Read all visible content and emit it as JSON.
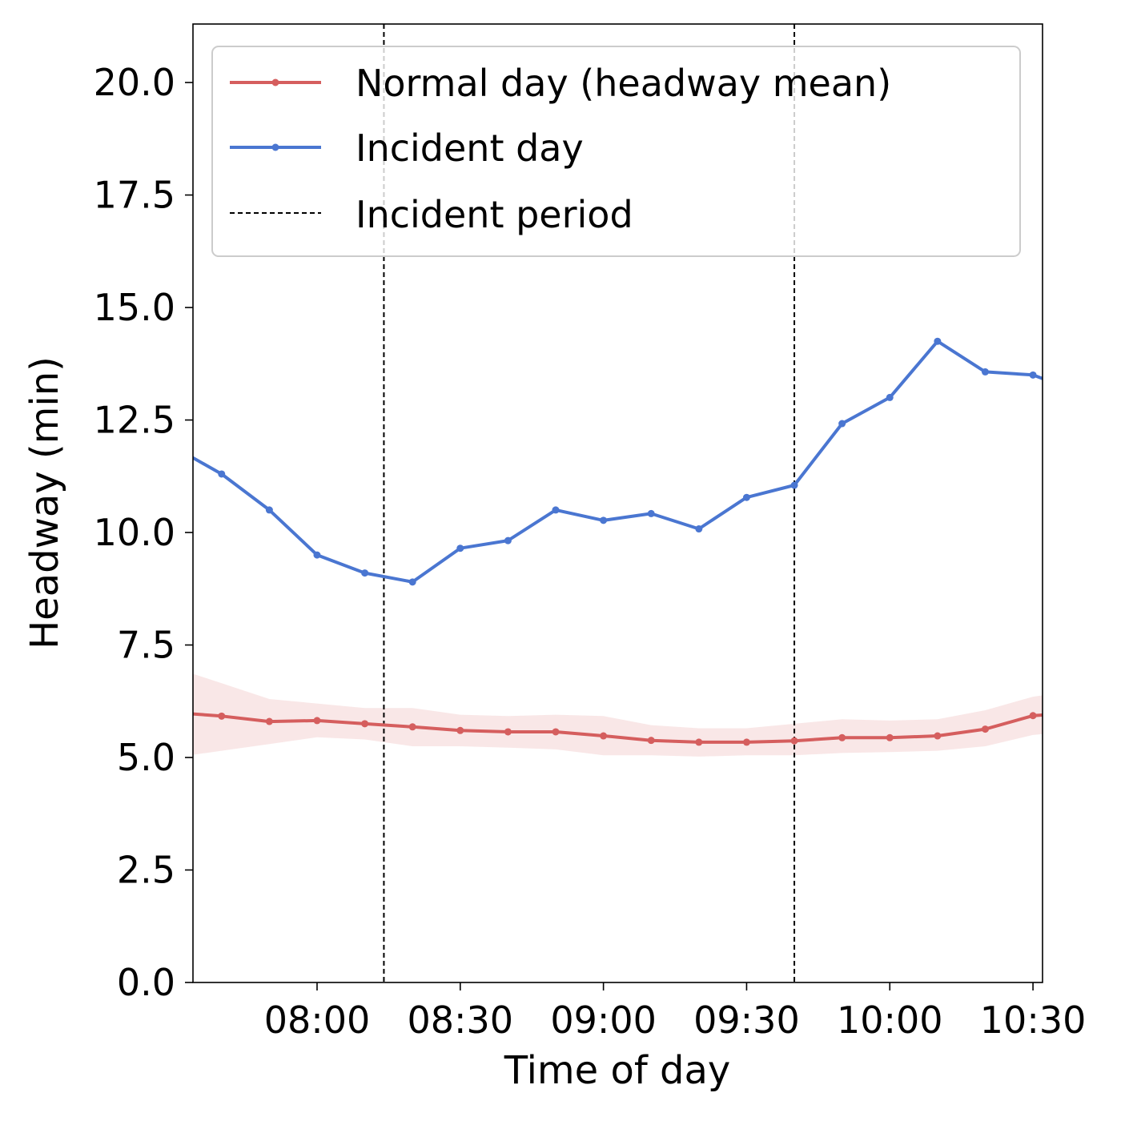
{
  "chart_data": {
    "type": "line",
    "xlabel": "Time of day",
    "ylabel": "Headway (min)",
    "xlim": [
      "07:34",
      "10:32"
    ],
    "ylim": [
      0,
      21.3
    ],
    "x_ticks": [
      "08:00",
      "08:30",
      "09:00",
      "09:30",
      "10:00",
      "10:30"
    ],
    "y_ticks": [
      "0.0",
      "2.5",
      "5.0",
      "7.5",
      "10.0",
      "12.5",
      "15.0",
      "17.5",
      "20.0"
    ],
    "grid": false,
    "legend_position": "top",
    "x": [
      "07:30",
      "07:40",
      "07:50",
      "08:00",
      "08:10",
      "08:20",
      "08:30",
      "08:40",
      "08:50",
      "09:00",
      "09:10",
      "09:20",
      "09:30",
      "09:40",
      "09:50",
      "10:00",
      "10:10",
      "10:20",
      "10:30",
      "10:40"
    ],
    "series": [
      {
        "name": "Normal day (headway mean)",
        "color": "#d55e5e",
        "values": [
          6.0,
          5.92,
          5.8,
          5.82,
          5.75,
          5.68,
          5.6,
          5.57,
          5.57,
          5.48,
          5.38,
          5.34,
          5.34,
          5.37,
          5.44,
          5.44,
          5.48,
          5.63,
          5.93,
          6.0
        ],
        "band_lower": [
          5.0,
          5.15,
          5.3,
          5.45,
          5.4,
          5.25,
          5.25,
          5.22,
          5.18,
          5.05,
          5.05,
          5.02,
          5.05,
          5.05,
          5.1,
          5.12,
          5.15,
          5.25,
          5.5,
          5.6
        ],
        "band_upper": [
          7.0,
          6.65,
          6.3,
          6.2,
          6.1,
          6.1,
          5.95,
          5.92,
          5.95,
          5.92,
          5.72,
          5.65,
          5.65,
          5.75,
          5.85,
          5.82,
          5.85,
          6.05,
          6.35,
          6.5
        ]
      },
      {
        "name": "Incident day",
        "color": "#4a76d1",
        "values": [
          11.9,
          11.3,
          10.5,
          9.5,
          9.1,
          8.9,
          9.65,
          9.82,
          10.5,
          10.27,
          10.42,
          10.08,
          10.78,
          11.05,
          12.42,
          13.0,
          14.25,
          13.57,
          13.5,
          13.1
        ]
      }
    ],
    "vlines": {
      "name": "Incident period",
      "x": [
        "08:14",
        "09:40"
      ],
      "color": "#000000"
    }
  }
}
